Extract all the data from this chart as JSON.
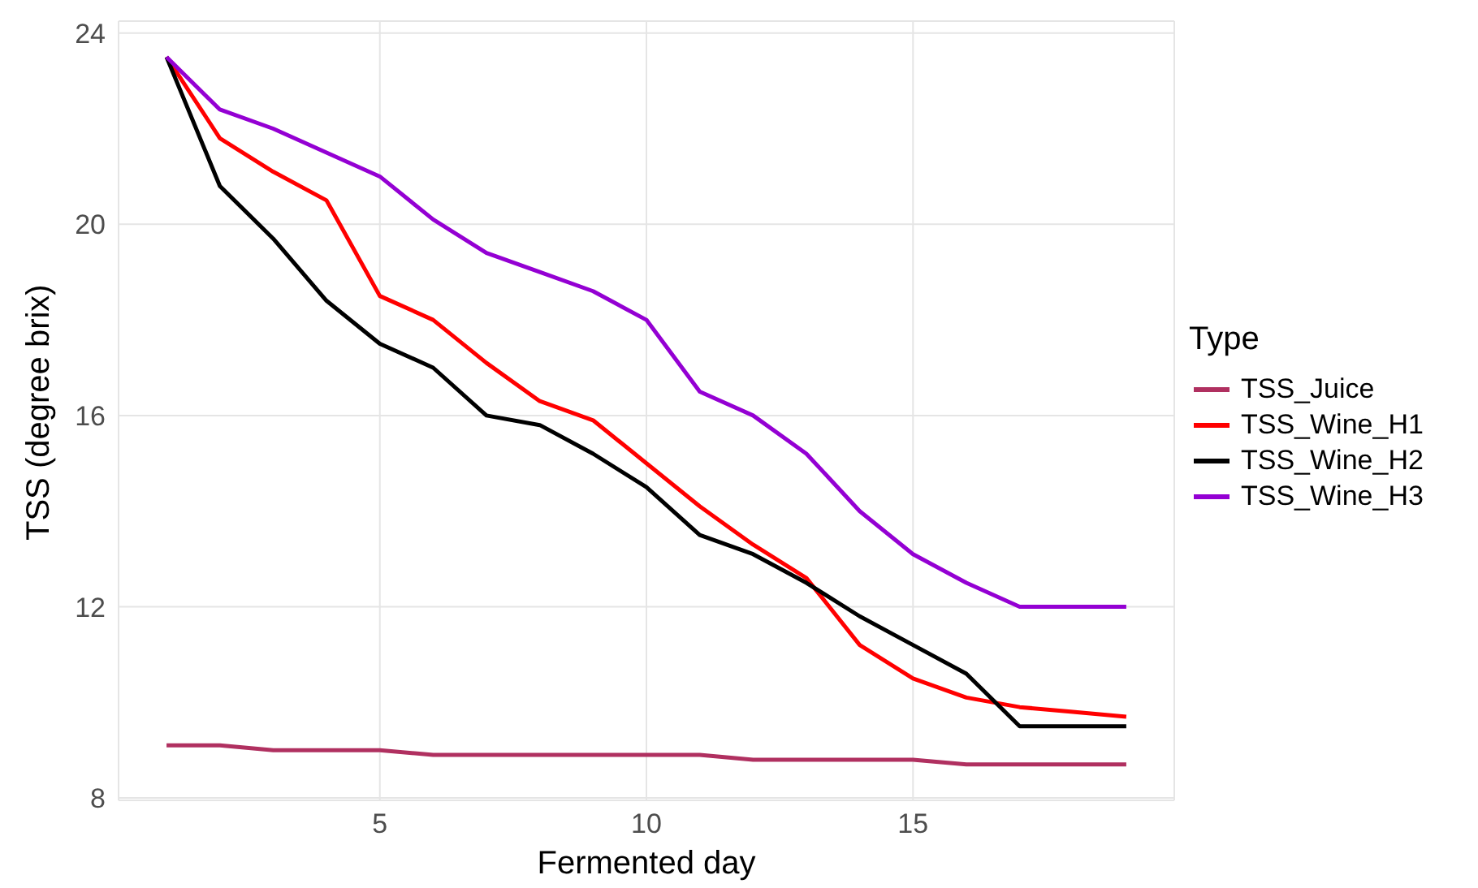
{
  "chart_data": {
    "type": "line",
    "xlabel": "Fermented day",
    "ylabel": "TSS (degree brix)",
    "legend_title": "Type",
    "legend": "right",
    "grid": true,
    "marker": "none",
    "line_style": "solid",
    "x": [
      1,
      2,
      3,
      4,
      5,
      6,
      7,
      8,
      9,
      10,
      11,
      12,
      13,
      14,
      15,
      16,
      17,
      18,
      19
    ],
    "xlim": [
      0.1,
      19.9
    ],
    "xticks": [
      5,
      10,
      15
    ],
    "ylim": [
      7.95,
      24.25
    ],
    "yticks": [
      8,
      12,
      16,
      20,
      24
    ],
    "series": [
      {
        "name": "TSS_Juice",
        "color": "#b03060",
        "values": [
          9.1,
          9.1,
          9.0,
          9.0,
          9.0,
          8.9,
          8.9,
          8.9,
          8.9,
          8.9,
          8.9,
          8.8,
          8.8,
          8.8,
          8.8,
          8.7,
          8.7,
          8.7,
          8.7
        ]
      },
      {
        "name": "TSS_Wine_H1",
        "color": "#ff0000",
        "values": [
          23.5,
          21.8,
          21.1,
          20.5,
          18.5,
          18.0,
          17.1,
          16.3,
          15.9,
          15.0,
          14.1,
          13.3,
          12.6,
          11.2,
          10.5,
          10.1,
          9.9,
          9.8,
          9.7
        ]
      },
      {
        "name": "TSS_Wine_H2",
        "color": "#000000",
        "values": [
          23.5,
          20.8,
          19.7,
          18.4,
          17.5,
          17.0,
          16.0,
          15.8,
          15.2,
          14.5,
          13.5,
          13.1,
          12.5,
          11.8,
          11.2,
          10.6,
          9.5,
          9.5,
          9.5
        ]
      },
      {
        "name": "TSS_Wine_H3",
        "color": "#9400d3",
        "values": [
          23.5,
          22.4,
          22.0,
          21.5,
          21.0,
          20.1,
          19.4,
          19.0,
          18.6,
          18.0,
          16.5,
          16.0,
          15.2,
          14.0,
          13.1,
          12.5,
          12.0,
          12.0,
          12.0
        ]
      }
    ]
  }
}
